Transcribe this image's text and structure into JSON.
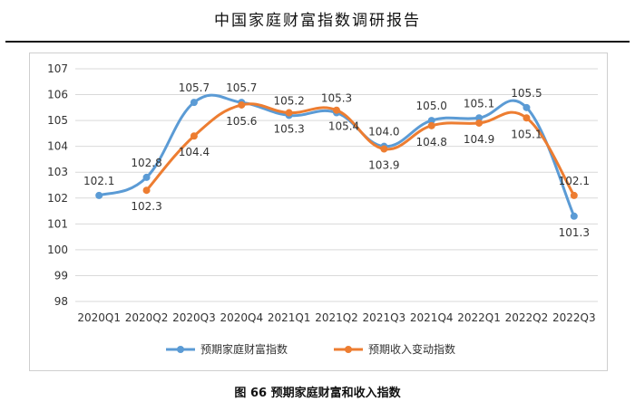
{
  "document": {
    "header_title": "中国家庭财富指数调研报告",
    "figure_caption": "图  66  预期家庭财富和收入指数"
  },
  "chart_data": {
    "type": "line",
    "title": "",
    "xlabel": "",
    "ylabel": "",
    "ylim": [
      98,
      107
    ],
    "yticks": [
      98,
      99,
      100,
      101,
      102,
      103,
      104,
      105,
      106,
      107
    ],
    "grid": true,
    "legend_position": "bottom",
    "categories": [
      "2020Q1",
      "2020Q2",
      "2020Q3",
      "2020Q4",
      "2021Q1",
      "2021Q2",
      "2021Q3",
      "2021Q4",
      "2022Q1",
      "2022Q2",
      "2022Q3"
    ],
    "series": [
      {
        "name": "预期家庭财富指数",
        "color": "#5b9bd5",
        "values": [
          102.1,
          102.8,
          105.7,
          105.7,
          105.2,
          105.3,
          104.0,
          105.0,
          105.1,
          105.5,
          101.3
        ],
        "labels": [
          "102.1",
          "102.8",
          "105.7",
          "105.7",
          "105.2",
          "105.3",
          "104.0",
          "105.0",
          "105.1",
          "105.5",
          "101.3"
        ]
      },
      {
        "name": "预期收入变动指数",
        "color": "#ed7d31",
        "values": [
          null,
          102.3,
          104.4,
          105.6,
          105.3,
          105.4,
          103.9,
          104.8,
          104.9,
          105.1,
          102.1
        ],
        "labels": [
          null,
          "102.3",
          "104.4",
          "105.6",
          "105.3",
          "105.4",
          "103.9",
          "104.8",
          "104.9",
          "105.1",
          "102.1"
        ]
      }
    ]
  }
}
